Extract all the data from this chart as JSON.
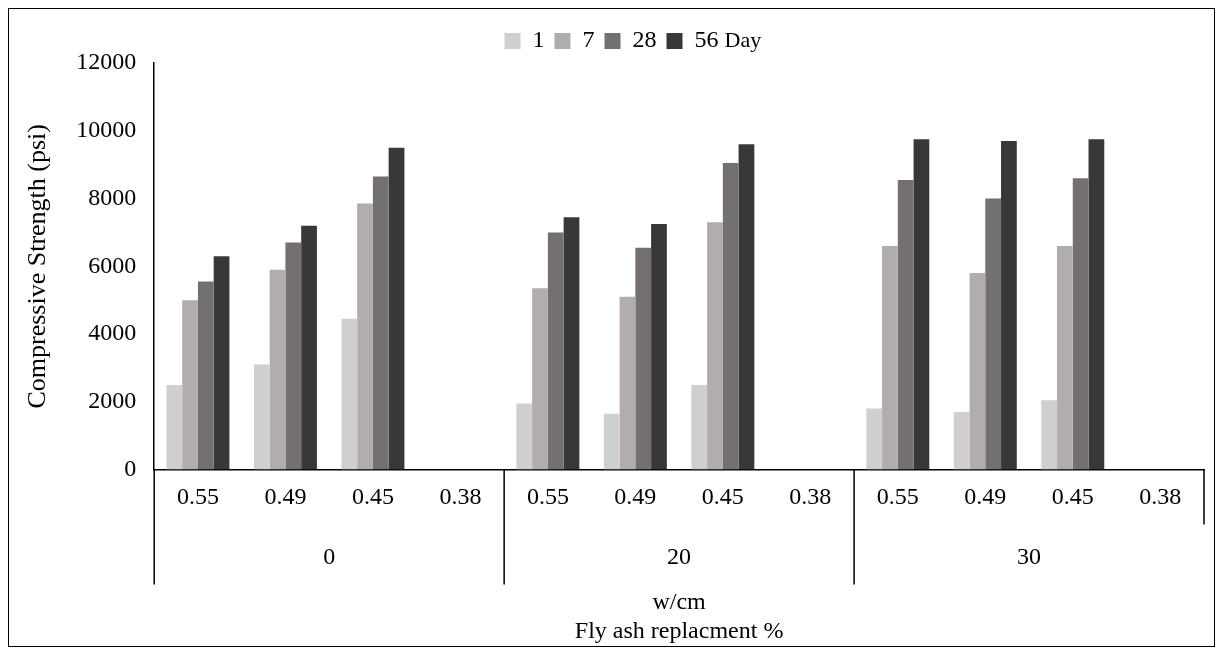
{
  "chart_data": {
    "type": "bar",
    "categories": [
      "0.55",
      "0.49",
      "0.45",
      "0.38",
      "0.55",
      "0.49",
      "0.45",
      "0.38",
      "0.55",
      "0.49",
      "0.45",
      "0.38"
    ],
    "series": [
      {
        "name": "1",
        "color": "#d0cfd0",
        "values": [
          2500,
          3100,
          4450,
          null,
          1950,
          1650,
          2500,
          null,
          1800,
          1700,
          2050,
          null
        ]
      },
      {
        "name": "7",
        "color": "#b0adac",
        "values": [
          5000,
          5900,
          7850,
          null,
          5350,
          5100,
          7300,
          null,
          6600,
          5800,
          6600,
          null
        ]
      },
      {
        "name": "28",
        "color": "#73706f",
        "values": [
          5550,
          6700,
          8650,
          null,
          7000,
          6550,
          9050,
          null,
          8550,
          8000,
          8600,
          null
        ]
      },
      {
        "name": "56",
        "color": "#3a3836",
        "values": [
          6300,
          7200,
          9500,
          null,
          7450,
          7250,
          9600,
          null,
          9750,
          9700,
          9750,
          null
        ]
      }
    ],
    "legend": "top",
    "legend_title": "Day",
    "ylabel": "Compressive Strength (psi)",
    "xlabel": "w/cm\nFly ash replacment %",
    "annotations": [
      "0",
      "20",
      "30"
    ],
    "ylim": [
      0,
      12000
    ],
    "yticks": [
      0,
      2000,
      4000,
      6000,
      8000,
      10000,
      12000
    ],
    "grid": false
  }
}
